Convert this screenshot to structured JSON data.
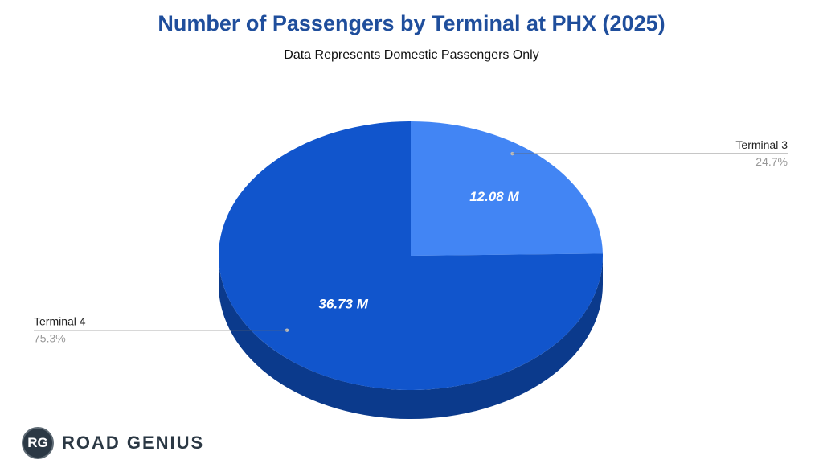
{
  "title": "Number of Passengers by Terminal at PHX (2025)",
  "subtitle": "Data Represents Domestic Passengers Only",
  "chart_data": {
    "type": "pie",
    "title": "Number of Passengers by Terminal at PHX (2025)",
    "subtitle": "Data Represents Domestic Passengers Only",
    "three_d": true,
    "slices": [
      {
        "name": "Terminal 3",
        "value": 12.08,
        "value_label": "12.08 M",
        "percent_label": "24.7%",
        "color": "#4285f4",
        "side_color": "#2f62c0"
      },
      {
        "name": "Terminal 4",
        "value": 36.73,
        "value_label": "36.73 M",
        "percent_label": "75.3%",
        "color": "#1155cc",
        "side_color": "#0b3a8c"
      }
    ]
  },
  "brand": {
    "badge": "RG",
    "name": "ROAD GENIUS"
  },
  "colors": {
    "title": "#1f4e9c",
    "leader_line": "#666666",
    "percent_text": "#999999"
  }
}
